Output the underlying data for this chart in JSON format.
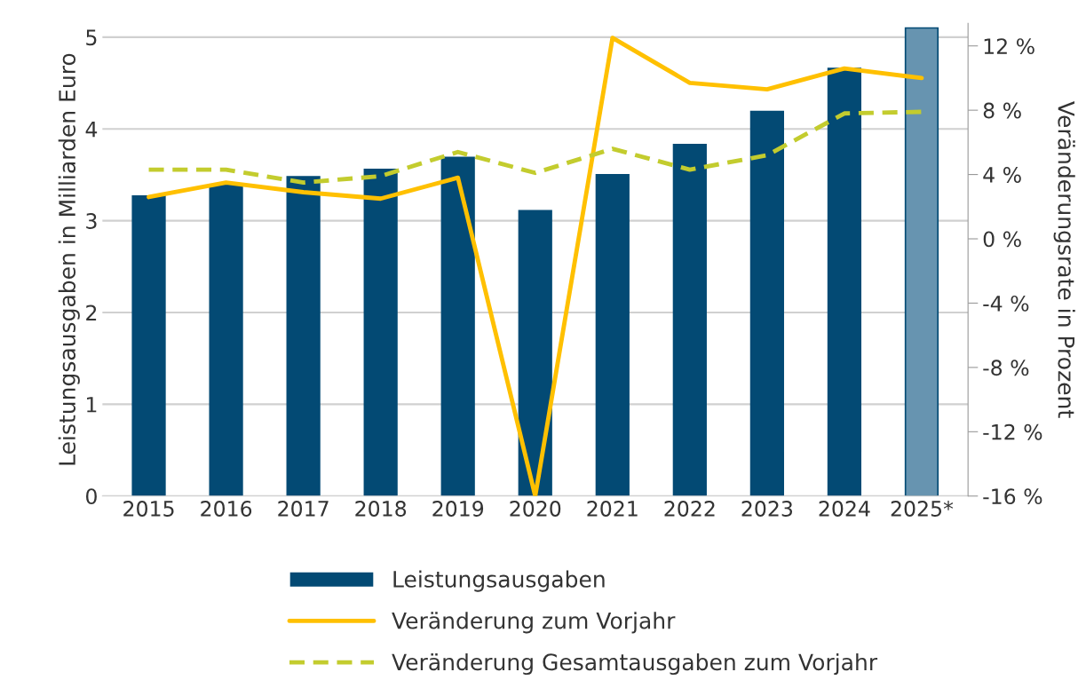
{
  "chart_data": {
    "type": "bar",
    "ylabel": "Leistungsausgaben in Milliarden Euro",
    "y2label": "Veränderungsrate in Prozent",
    "categories": [
      "2015",
      "2016",
      "2017",
      "2018",
      "2019",
      "2020",
      "2021",
      "2022",
      "2023",
      "2024",
      "2025*"
    ],
    "series": [
      {
        "name": "Leistungsausgaben",
        "color": "#034a74",
        "colors": [
          "#034a74",
          "#034a74",
          "#034a74",
          "#034a74",
          "#034a74",
          "#034a74",
          "#034a74",
          "#034a74",
          "#034a74",
          "#034a74",
          "#6794b0"
        ],
        "values": [
          3.27,
          3.39,
          3.48,
          3.56,
          3.69,
          3.11,
          3.5,
          3.83,
          4.19,
          4.66,
          5.1
        ]
      },
      {
        "name": "Veränderung zum Vorjahr",
        "type": "line",
        "axis": "y2",
        "color": "#ffc000",
        "line_style": "solid",
        "values": [
          2.6,
          3.5,
          2.9,
          2.5,
          3.8,
          -16.0,
          12.5,
          9.7,
          9.3,
          10.6,
          10.0
        ]
      },
      {
        "name": "Veränderung Gesamtausgaben zum Vorjahr",
        "type": "line",
        "axis": "y2",
        "color": "#c3cc2e",
        "line_style": "dashed",
        "values": [
          4.3,
          4.3,
          3.5,
          3.9,
          5.4,
          4.1,
          5.6,
          4.3,
          5.2,
          7.8,
          7.9
        ]
      }
    ],
    "ylim": [
      0,
      5.15
    ],
    "yticks": [
      0,
      1,
      2,
      3,
      4,
      5
    ],
    "y2lim": [
      -16,
      13.4
    ],
    "y2ticks": [
      {
        "value": -16,
        "label": "-16 %"
      },
      {
        "value": -12,
        "label": "-12 %"
      },
      {
        "value": -8,
        "label": "-8 %"
      },
      {
        "value": -4,
        "label": "-4 %"
      },
      {
        "value": 0,
        "label": "0 %"
      },
      {
        "value": 4,
        "label": "4 %"
      },
      {
        "value": 8,
        "label": "8 %"
      },
      {
        "value": 12,
        "label": "12 %"
      }
    ],
    "grid": "y",
    "legend": "bottom"
  }
}
